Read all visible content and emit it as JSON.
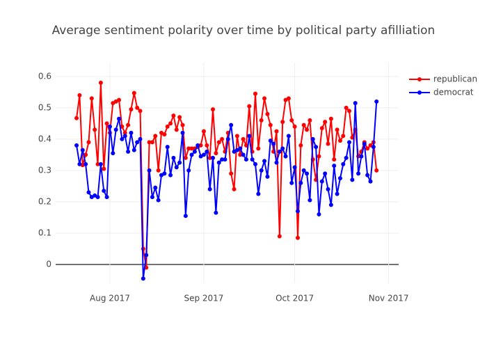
{
  "chart_data": {
    "type": "line",
    "title": "Average sentiment polarity over time by political party afilliation",
    "x": [
      -11,
      -10,
      -9,
      -8,
      -7,
      -6,
      -5,
      -4,
      -3,
      -2,
      -1,
      0,
      1,
      2,
      3,
      4,
      5,
      6,
      7,
      8,
      9,
      10,
      11,
      12,
      13,
      14,
      15,
      16,
      17,
      18,
      19,
      20,
      21,
      22,
      23,
      24,
      25,
      26,
      27,
      28,
      29,
      30,
      31,
      32,
      33,
      34,
      35,
      36,
      37,
      38,
      39,
      40,
      41,
      42,
      43,
      44,
      45,
      46,
      47,
      48,
      49,
      50,
      51,
      52,
      53,
      54,
      55,
      56,
      57,
      58,
      59,
      60,
      61,
      62,
      63,
      64,
      65,
      66,
      67,
      68,
      69,
      70,
      71,
      72,
      73,
      74,
      75,
      76,
      77,
      78,
      79,
      80,
      81,
      82,
      83,
      84,
      85,
      86,
      87,
      88
    ],
    "series": [
      {
        "name": "republican",
        "color": "#ff0000",
        "values": [
          0.467,
          0.54,
          0.317,
          0.35,
          0.39,
          0.53,
          0.43,
          0.32,
          0.58,
          0.305,
          0.45,
          0.42,
          0.515,
          0.52,
          0.525,
          0.44,
          0.42,
          0.445,
          0.495,
          0.547,
          0.5,
          0.49,
          0.05,
          -0.01,
          0.39,
          0.39,
          0.41,
          0.3,
          0.42,
          0.415,
          0.44,
          0.45,
          0.475,
          0.43,
          0.47,
          0.445,
          0.34,
          0.37,
          0.37,
          0.37,
          0.375,
          0.38,
          0.425,
          0.38,
          0.34,
          0.495,
          0.355,
          0.39,
          0.4,
          0.36,
          0.42,
          0.29,
          0.24,
          0.41,
          0.35,
          0.4,
          0.38,
          0.505,
          0.36,
          0.545,
          0.37,
          0.46,
          0.53,
          0.48,
          0.445,
          0.36,
          0.425,
          0.09,
          0.455,
          0.525,
          0.53,
          0.46,
          0.44,
          0.085,
          0.38,
          0.445,
          0.43,
          0.46,
          0.335,
          0.27,
          0.345,
          0.435,
          0.455,
          0.385,
          0.465,
          0.335,
          0.43,
          0.395,
          0.41,
          0.5,
          0.49,
          0.405,
          0.43,
          0.345,
          0.36,
          0.39,
          0.37,
          0.38,
          0.39,
          0.3
        ]
      },
      {
        "name": "democrat",
        "color": "#0000ff",
        "values": [
          0.38,
          0.32,
          0.365,
          0.32,
          0.23,
          0.215,
          0.22,
          0.215,
          0.32,
          0.235,
          0.215,
          0.44,
          0.355,
          0.43,
          0.465,
          0.4,
          0.41,
          0.36,
          0.42,
          0.365,
          0.39,
          0.4,
          -0.045,
          0.03,
          0.3,
          0.215,
          0.245,
          0.205,
          0.285,
          0.29,
          0.375,
          0.285,
          0.34,
          0.31,
          0.325,
          0.42,
          0.155,
          0.3,
          0.35,
          0.36,
          0.38,
          0.345,
          0.35,
          0.36,
          0.24,
          0.34,
          0.165,
          0.325,
          0.335,
          0.335,
          0.4,
          0.445,
          0.36,
          0.365,
          0.37,
          0.35,
          0.335,
          0.41,
          0.335,
          0.32,
          0.225,
          0.3,
          0.33,
          0.28,
          0.395,
          0.385,
          0.325,
          0.36,
          0.37,
          0.345,
          0.41,
          0.26,
          0.31,
          0.17,
          0.26,
          0.3,
          0.29,
          0.205,
          0.4,
          0.375,
          0.16,
          0.265,
          0.29,
          0.24,
          0.19,
          0.315,
          0.225,
          0.275,
          0.32,
          0.34,
          0.39,
          0.27,
          0.515,
          0.29,
          0.345,
          0.385,
          0.285,
          0.265,
          0.375,
          0.52
        ]
      }
    ],
    "xlim": [
      -17.9,
      95.3
    ],
    "xticks": [
      {
        "value": 0,
        "label": "Aug 2017"
      },
      {
        "value": 31,
        "label": "Sep 2017"
      },
      {
        "value": 61,
        "label": "Oct 2017"
      },
      {
        "value": 92,
        "label": "Nov 2017"
      }
    ],
    "ylim": [
      -0.06,
      0.644
    ],
    "yticks": [
      0,
      0.1,
      0.2,
      0.3,
      0.4,
      0.5,
      0.6
    ],
    "grid": true,
    "legend": "top-right"
  }
}
